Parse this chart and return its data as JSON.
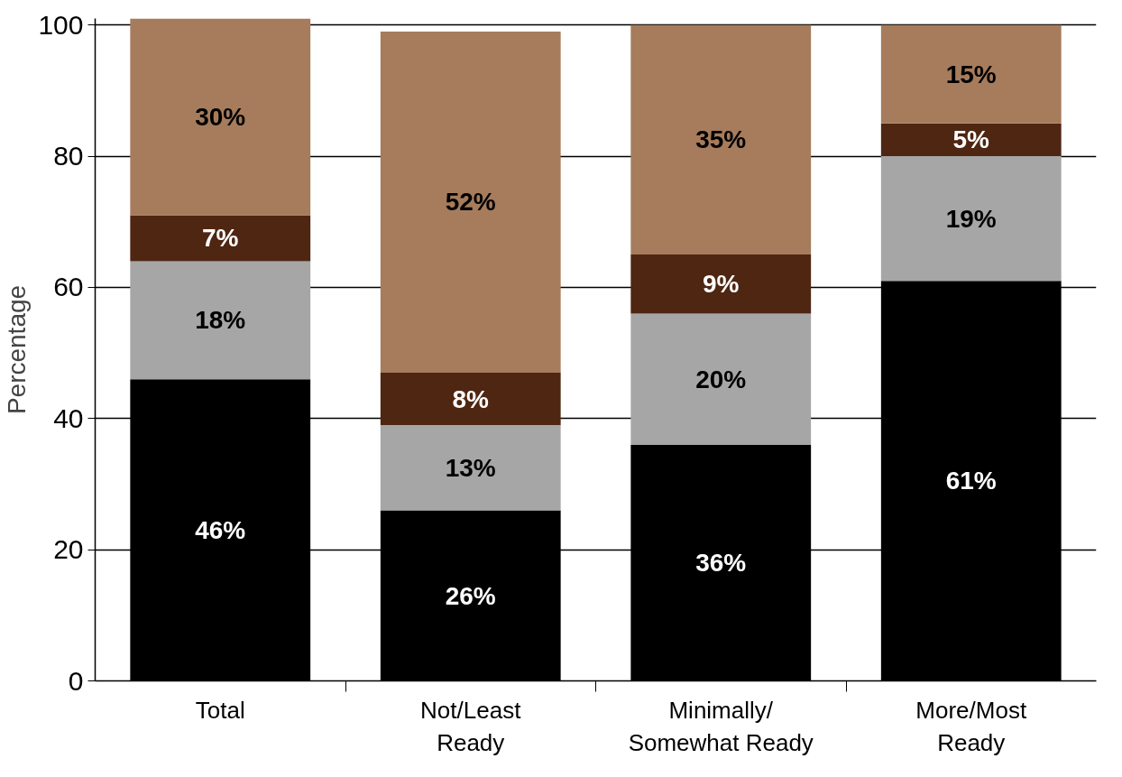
{
  "chart_data": {
    "type": "bar",
    "stacked": true,
    "ylabel": "Percentage",
    "categories": [
      "Total",
      "Not/Least\nReady",
      "Minimally/\nSomewhat Ready",
      "More/Most\nReady"
    ],
    "series": [
      {
        "color": "#000000",
        "values": [
          46,
          26,
          36,
          61
        ],
        "value_labels": [
          "46%",
          "26%",
          "36%",
          "61%"
        ]
      },
      {
        "color": "#a6a6a6",
        "values": [
          18,
          13,
          20,
          19
        ],
        "value_labels": [
          "18%",
          "13%",
          "20%",
          "19%"
        ]
      },
      {
        "color": "#4e2612",
        "values": [
          7,
          8,
          9,
          5
        ],
        "value_labels": [
          "7%",
          "8%",
          "9%",
          "5%"
        ]
      },
      {
        "color": "#a67c5c",
        "values": [
          30,
          52,
          35,
          15
        ],
        "value_labels": [
          "30%",
          "52%",
          "35%",
          "15%"
        ]
      }
    ],
    "ylim": [
      0,
      101
    ],
    "yticks": [
      0,
      20,
      40,
      60,
      80,
      100
    ],
    "grid": "y"
  }
}
